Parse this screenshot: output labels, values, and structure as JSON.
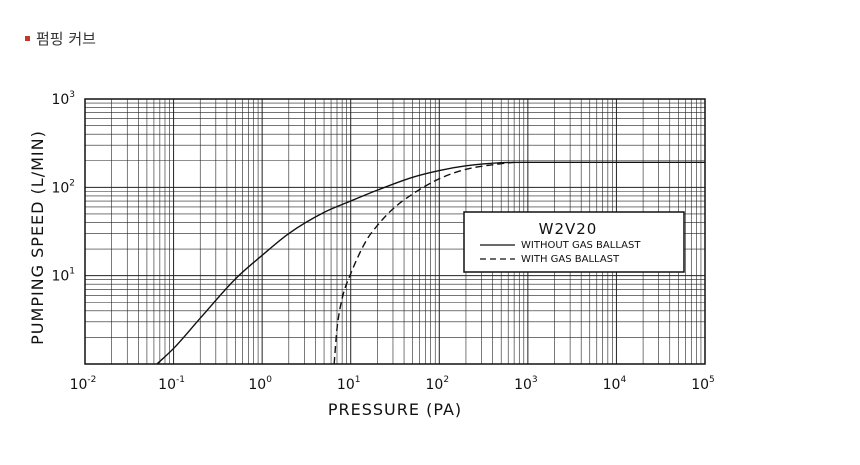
{
  "page": {
    "heading": "펌핑 커브",
    "bullet_color": "#c0392b"
  },
  "chart_data": {
    "type": "line",
    "title": "",
    "xlabel": "PRESSURE (PA)",
    "ylabel": "PUMPING SPEED (L/MIN)",
    "xscale": "log",
    "yscale": "log",
    "xlim": [
      0.01,
      100000
    ],
    "ylim": [
      1,
      1000
    ],
    "grid": true,
    "x_ticks": [
      {
        "base": "10",
        "exp": "-2"
      },
      {
        "base": "10",
        "exp": "-1"
      },
      {
        "base": "10",
        "exp": "0"
      },
      {
        "base": "10",
        "exp": "1"
      },
      {
        "base": "10",
        "exp": "2"
      },
      {
        "base": "10",
        "exp": "3"
      },
      {
        "base": "10",
        "exp": "4"
      },
      {
        "base": "10",
        "exp": "5"
      }
    ],
    "y_ticks": [
      {
        "value": 10,
        "base": "10",
        "exp": "1"
      },
      {
        "value": 100,
        "base": "10",
        "exp": "2"
      },
      {
        "value": 1000,
        "base": "10",
        "exp": "3"
      }
    ],
    "legend": {
      "title": "W2V20",
      "placement": "right-middle",
      "entries": [
        "WITHOUT GAS BALLAST",
        "WITH  GAS  BALLAST"
      ]
    },
    "series": [
      {
        "name": "WITHOUT GAS BALLAST",
        "style": "solid",
        "x": [
          0.065,
          0.1,
          0.2,
          0.5,
          1,
          2,
          5,
          10,
          20,
          50,
          100,
          200,
          500,
          1000,
          10000,
          100000
        ],
        "y": [
          1,
          1.5,
          3.3,
          9.2,
          17,
          30,
          52,
          70,
          93,
          130,
          155,
          175,
          190,
          192,
          192,
          192
        ]
      },
      {
        "name": "WITH  GAS  BALLAST",
        "style": "dashed",
        "x": [
          6.5,
          7,
          8,
          10,
          15,
          20,
          30,
          50,
          100,
          200,
          500,
          700
        ],
        "y": [
          1,
          2.5,
          5.5,
          10.5,
          25,
          37,
          57,
          84,
          125,
          160,
          185,
          192
        ]
      }
    ],
    "colors": {
      "line": "#111111",
      "grid": "#222222"
    }
  }
}
